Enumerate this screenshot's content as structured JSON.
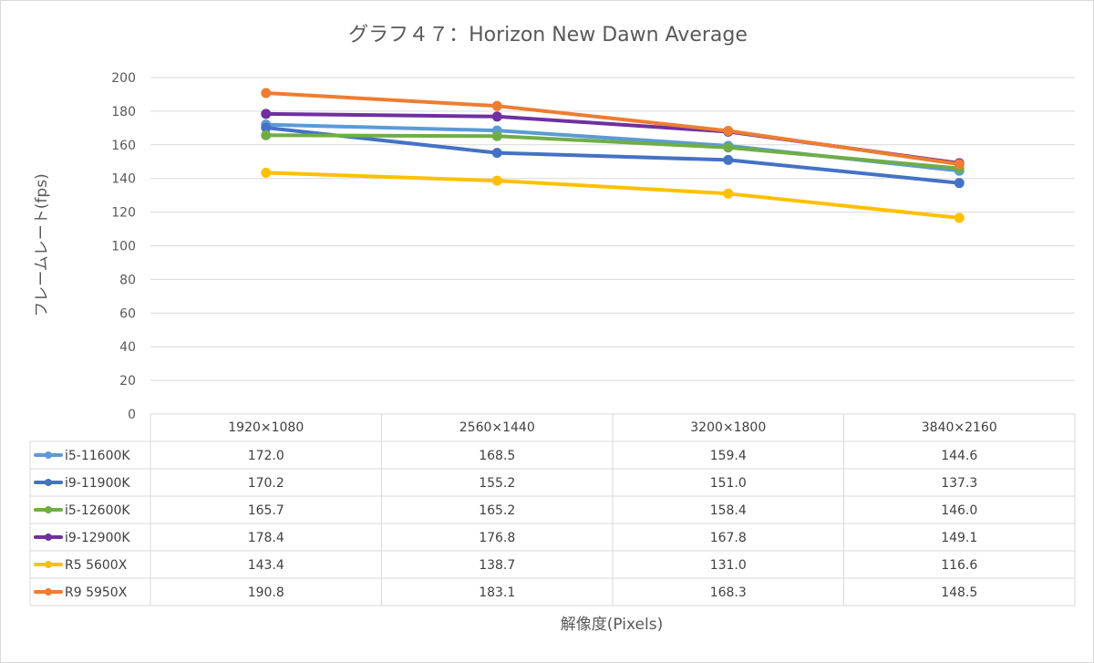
{
  "chart_data": {
    "type": "line",
    "title": "グラフ４７：Horizon New Dawn Average",
    "xlabel": "解像度(Pixels)",
    "ylabel": "フレームレート(fps)",
    "ylim": [
      0,
      200
    ],
    "yticks": [
      0,
      20,
      40,
      60,
      80,
      100,
      120,
      140,
      160,
      180,
      200
    ],
    "grid": true,
    "legend": "data-table",
    "categories": [
      "1920×1080",
      "2560×1440",
      "3200×1800",
      "3840×2160"
    ],
    "series": [
      {
        "name": "i5-11600K",
        "color": "#5b9bd5",
        "values": [
          172.0,
          168.5,
          159.4,
          144.6
        ],
        "labels": [
          "172.0",
          "168.5",
          "159.4",
          "144.6"
        ]
      },
      {
        "name": "i9-11900K",
        "color": "#4472c4",
        "values": [
          170.2,
          155.2,
          151.0,
          137.3
        ],
        "labels": [
          "170.2",
          "155.2",
          "151.0",
          "137.3"
        ]
      },
      {
        "name": "i5-12600K",
        "color": "#70ad47",
        "values": [
          165.7,
          165.2,
          158.4,
          146.0
        ],
        "labels": [
          "165.7",
          "165.2",
          "158.4",
          "146.0"
        ]
      },
      {
        "name": "i9-12900K",
        "color": "#7030a0",
        "values": [
          178.4,
          176.8,
          167.8,
          149.1
        ],
        "labels": [
          "178.4",
          "176.8",
          "167.8",
          "149.1"
        ]
      },
      {
        "name": "R5 5600X",
        "color": "#ffc000",
        "values": [
          143.4,
          138.7,
          131.0,
          116.6
        ],
        "labels": [
          "143.4",
          "138.7",
          "131.0",
          "116.6"
        ]
      },
      {
        "name": "R9 5950X",
        "color": "#ed7d31",
        "values": [
          190.8,
          183.1,
          168.3,
          148.5
        ],
        "labels": [
          "190.8",
          "183.1",
          "168.3",
          "148.5"
        ]
      }
    ]
  }
}
